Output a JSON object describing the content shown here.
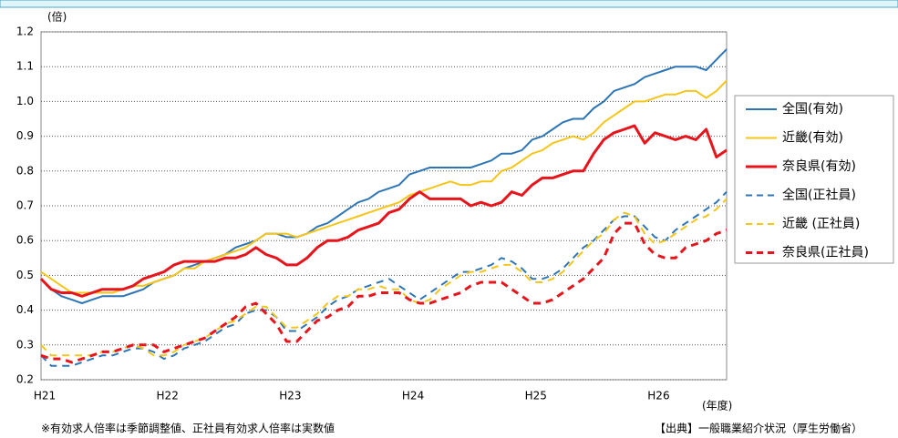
{
  "chart_data": {
    "type": "line",
    "y_unit": "(倍)",
    "x_unit": "(年度)",
    "note": "※有効求人倍率は季節調整値、正社員有効求人倍率は実数値",
    "source": "【出典】一般職業紹介状況（厚生労働省）",
    "categories": [
      "H21",
      null,
      null,
      null,
      null,
      null,
      null,
      null,
      null,
      null,
      null,
      null,
      "H22",
      null,
      null,
      null,
      null,
      null,
      null,
      null,
      null,
      null,
      null,
      null,
      "H23",
      null,
      null,
      null,
      null,
      null,
      null,
      null,
      null,
      null,
      null,
      null,
      "H24",
      null,
      null,
      null,
      null,
      null,
      null,
      null,
      null,
      null,
      null,
      null,
      "H25",
      null,
      null,
      null,
      null,
      null,
      null,
      null,
      null,
      null,
      null,
      null,
      "H26",
      null,
      null,
      null,
      null,
      null,
      null,
      null
    ],
    "ylim": [
      0.2,
      1.2
    ],
    "yticks": [
      0.2,
      0.3,
      0.4,
      0.5,
      0.6,
      0.7,
      0.8,
      0.9,
      {
        "value": 1,
        "label": "1.0"
      },
      1.1,
      1.2
    ],
    "grid": true,
    "legend": "right",
    "series": [
      {
        "name": "全国(有効)",
        "color": "#2e75b6",
        "dashed": false,
        "line_width": 2,
        "values": [
          0.49,
          0.46,
          0.44,
          0.43,
          0.42,
          0.43,
          0.44,
          0.44,
          0.44,
          0.45,
          0.46,
          0.48,
          0.49,
          0.5,
          0.52,
          0.53,
          0.54,
          0.55,
          0.56,
          0.58,
          0.59,
          0.6,
          0.62,
          0.62,
          0.61,
          0.61,
          0.62,
          0.64,
          0.65,
          0.67,
          0.69,
          0.71,
          0.72,
          0.74,
          0.75,
          0.76,
          0.79,
          0.8,
          0.81,
          0.81,
          0.81,
          0.81,
          0.81,
          0.82,
          0.83,
          0.85,
          0.85,
          0.86,
          0.89,
          0.9,
          0.92,
          0.94,
          0.95,
          0.95,
          0.98,
          1.0,
          1.03,
          1.04,
          1.05,
          1.07,
          1.08,
          1.09,
          1.1,
          1.1,
          1.1,
          1.09,
          1.12,
          1.15
        ]
      },
      {
        "name": "近畿(有効)",
        "color": "#f5c518",
        "dashed": false,
        "line_width": 2,
        "values": [
          0.51,
          0.49,
          0.47,
          0.45,
          0.45,
          0.45,
          0.45,
          0.45,
          0.46,
          0.47,
          0.47,
          0.48,
          0.49,
          0.5,
          0.52,
          0.52,
          0.54,
          0.55,
          0.56,
          0.57,
          0.58,
          0.6,
          0.62,
          0.62,
          0.62,
          0.61,
          0.62,
          0.63,
          0.64,
          0.65,
          0.66,
          0.67,
          0.68,
          0.69,
          0.7,
          0.71,
          0.73,
          0.74,
          0.75,
          0.76,
          0.77,
          0.76,
          0.76,
          0.77,
          0.77,
          0.8,
          0.81,
          0.83,
          0.85,
          0.86,
          0.88,
          0.89,
          0.9,
          0.89,
          0.91,
          0.94,
          0.96,
          0.98,
          1.0,
          1.0,
          1.01,
          1.02,
          1.02,
          1.03,
          1.03,
          1.01,
          1.03,
          1.06
        ]
      },
      {
        "name": "奈良県(有効)",
        "color": "#e8141b",
        "dashed": false,
        "line_width": 3,
        "values": [
          0.49,
          0.46,
          0.45,
          0.45,
          0.44,
          0.45,
          0.46,
          0.46,
          0.46,
          0.47,
          0.49,
          0.5,
          0.51,
          0.53,
          0.54,
          0.54,
          0.54,
          0.54,
          0.55,
          0.55,
          0.56,
          0.58,
          0.56,
          0.55,
          0.53,
          0.53,
          0.55,
          0.58,
          0.6,
          0.6,
          0.61,
          0.63,
          0.64,
          0.65,
          0.68,
          0.69,
          0.72,
          0.74,
          0.72,
          0.72,
          0.72,
          0.72,
          0.7,
          0.71,
          0.7,
          0.71,
          0.74,
          0.73,
          0.76,
          0.78,
          0.78,
          0.79,
          0.8,
          0.8,
          0.85,
          0.89,
          0.91,
          0.92,
          0.93,
          0.88,
          0.91,
          0.9,
          0.89,
          0.9,
          0.89,
          0.92,
          0.84,
          0.86
        ]
      },
      {
        "name": "全国(正社員)",
        "color": "#2e75b6",
        "dashed": true,
        "line_width": 2,
        "values": [
          0.27,
          0.24,
          0.24,
          0.24,
          0.25,
          0.26,
          0.27,
          0.27,
          0.28,
          0.29,
          0.29,
          0.28,
          0.26,
          0.27,
          0.29,
          0.3,
          0.31,
          0.33,
          0.35,
          0.36,
          0.39,
          0.4,
          0.4,
          0.38,
          0.34,
          0.34,
          0.36,
          0.38,
          0.41,
          0.43,
          0.44,
          0.46,
          0.47,
          0.48,
          0.49,
          0.47,
          0.45,
          0.43,
          0.45,
          0.47,
          0.49,
          0.51,
          0.51,
          0.52,
          0.53,
          0.55,
          0.54,
          0.52,
          0.49,
          0.49,
          0.5,
          0.52,
          0.55,
          0.58,
          0.6,
          0.63,
          0.66,
          0.67,
          0.67,
          0.64,
          0.61,
          0.6,
          0.63,
          0.65,
          0.67,
          0.69,
          0.71,
          0.74
        ]
      },
      {
        "name": "近畿 (正社員)",
        "color": "#f5c518",
        "dashed": true,
        "line_width": 2,
        "values": [
          0.3,
          0.27,
          0.27,
          0.27,
          0.27,
          0.27,
          0.28,
          0.28,
          0.29,
          0.3,
          0.29,
          0.27,
          0.27,
          0.28,
          0.3,
          0.31,
          0.32,
          0.34,
          0.36,
          0.37,
          0.39,
          0.41,
          0.41,
          0.38,
          0.35,
          0.35,
          0.37,
          0.39,
          0.42,
          0.44,
          0.44,
          0.46,
          0.46,
          0.47,
          0.46,
          0.46,
          0.43,
          0.42,
          0.43,
          0.46,
          0.48,
          0.5,
          0.51,
          0.51,
          0.52,
          0.53,
          0.53,
          0.51,
          0.48,
          0.48,
          0.49,
          0.51,
          0.54,
          0.57,
          0.6,
          0.62,
          0.66,
          0.68,
          0.67,
          0.62,
          0.59,
          0.6,
          0.62,
          0.64,
          0.66,
          0.67,
          0.69,
          0.72
        ]
      },
      {
        "name": "奈良県(正社員)",
        "color": "#e8141b",
        "dashed": true,
        "line_width": 3,
        "values": [
          0.27,
          0.26,
          0.26,
          0.25,
          0.26,
          0.27,
          0.28,
          0.28,
          0.29,
          0.3,
          0.3,
          0.3,
          0.28,
          0.29,
          0.3,
          0.31,
          0.32,
          0.34,
          0.36,
          0.38,
          0.41,
          0.42,
          0.39,
          0.36,
          0.31,
          0.31,
          0.34,
          0.37,
          0.38,
          0.4,
          0.41,
          0.44,
          0.44,
          0.45,
          0.45,
          0.45,
          0.43,
          0.42,
          0.42,
          0.43,
          0.44,
          0.45,
          0.47,
          0.48,
          0.48,
          0.48,
          0.46,
          0.44,
          0.42,
          0.42,
          0.43,
          0.45,
          0.47,
          0.49,
          0.52,
          0.55,
          0.62,
          0.65,
          0.65,
          0.59,
          0.56,
          0.55,
          0.55,
          0.58,
          0.59,
          0.6,
          0.62,
          0.63
        ]
      }
    ]
  }
}
